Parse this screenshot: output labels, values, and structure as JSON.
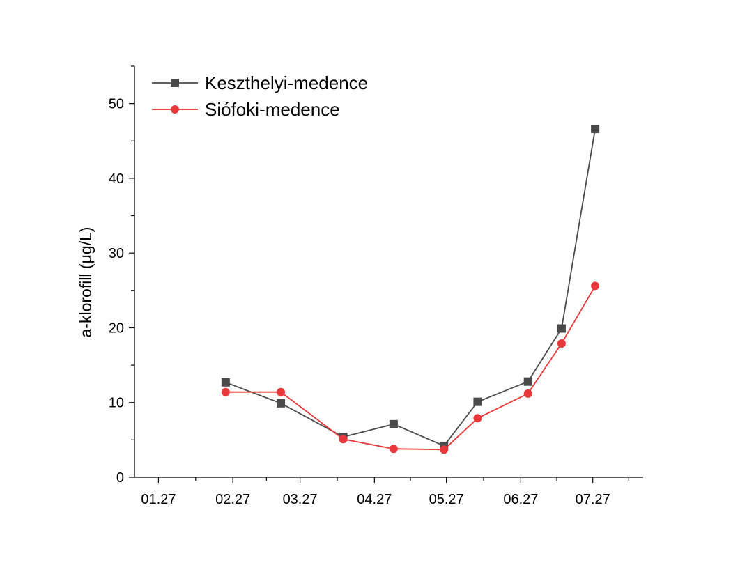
{
  "chart_data": {
    "type": "line",
    "ylabel": "a-klorofill (μg/L)",
    "xlabel": "",
    "ylim": [
      0,
      55
    ],
    "xlim": [
      "2023-01-17",
      "2023-08-17"
    ],
    "x_ticks": [
      "01.27",
      "02.27",
      "03.27",
      "04.27",
      "05.27",
      "06.27",
      "07.27"
    ],
    "x_tick_dates": [
      "2023-01-27",
      "2023-02-27",
      "2023-03-27",
      "2023-04-27",
      "2023-05-27",
      "2023-06-27",
      "2023-07-27"
    ],
    "y_ticks": [
      0,
      10,
      20,
      30,
      40,
      50
    ],
    "grid": false,
    "legend_position": "top-left",
    "series": [
      {
        "name": "Keszthelyi-medence",
        "color": "#4a4a4a",
        "marker": "square",
        "points": [
          {
            "x": "2023-02-24",
            "y": 12.7
          },
          {
            "x": "2023-03-19",
            "y": 9.9
          },
          {
            "x": "2023-04-14",
            "y": 5.4
          },
          {
            "x": "2023-05-05",
            "y": 7.1
          },
          {
            "x": "2023-05-26",
            "y": 4.2
          },
          {
            "x": "2023-06-09",
            "y": 10.1
          },
          {
            "x": "2023-06-30",
            "y": 12.8
          },
          {
            "x": "2023-07-14",
            "y": 19.9
          },
          {
            "x": "2023-07-28",
            "y": 46.6
          }
        ]
      },
      {
        "name": "Siófoki-medence",
        "color": "#e8383b",
        "marker": "circle",
        "points": [
          {
            "x": "2023-02-24",
            "y": 11.4
          },
          {
            "x": "2023-03-19",
            "y": 11.4
          },
          {
            "x": "2023-04-14",
            "y": 5.1
          },
          {
            "x": "2023-05-05",
            "y": 3.8
          },
          {
            "x": "2023-05-26",
            "y": 3.7
          },
          {
            "x": "2023-06-09",
            "y": 7.9
          },
          {
            "x": "2023-06-30",
            "y": 11.2
          },
          {
            "x": "2023-07-14",
            "y": 17.9
          },
          {
            "x": "2023-07-28",
            "y": 25.6
          }
        ]
      }
    ]
  }
}
